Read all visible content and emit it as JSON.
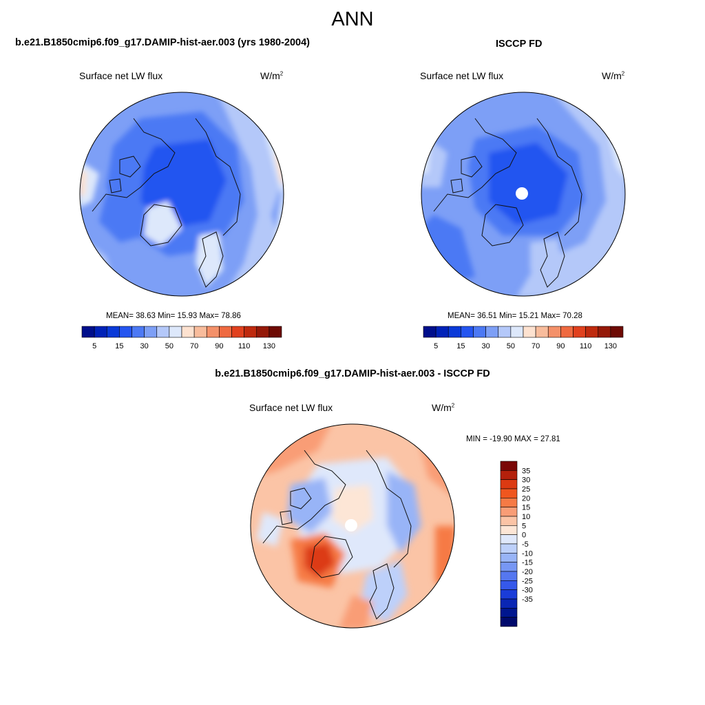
{
  "main_title": "ANN",
  "panels": {
    "model": {
      "title": "b.e21.B1850cmip6.f09_g17.DAMIP-hist-aer.003 (yrs 1980-2004)",
      "field": "Surface net LW flux",
      "units_base": "W/m",
      "units_exp": "2",
      "stats": "MEAN=  38.63  Min=  15.93  Max=  78.86"
    },
    "obs": {
      "title": "ISCCP FD",
      "field": "Surface net LW flux",
      "units_base": "W/m",
      "units_exp": "2",
      "stats": "MEAN=  36.51  Min=  15.21  Max=  70.28"
    },
    "diff": {
      "title": "b.e21.B1850cmip6.f09_g17.DAMIP-hist-aer.003 - ISCCP FD",
      "field": "Surface net LW flux",
      "units_base": "W/m",
      "units_exp": "2",
      "stats": "MIN = -19.90 MAX =  27.81"
    }
  },
  "colorbar_h": {
    "colors": [
      "#000f8c",
      "#0022b8",
      "#0a3ad8",
      "#2455f0",
      "#4c79f4",
      "#7d9ff6",
      "#b4c8f9",
      "#dde8fb",
      "#fde2d0",
      "#f8bc9c",
      "#f4916a",
      "#ef6a40",
      "#e1411e",
      "#bf2a0e",
      "#951908",
      "#6e0a04"
    ],
    "ticks": [
      "5",
      "15",
      "30",
      "50",
      "70",
      "90",
      "110",
      "130"
    ]
  },
  "colorbar_v": {
    "colors": [
      "#7a0707",
      "#b4200b",
      "#dc3a12",
      "#f0561f",
      "#f67a45",
      "#f99d76",
      "#fbc4a6",
      "#fde6d6",
      "#dfe8fb",
      "#bdd0fa",
      "#98b4f7",
      "#7797f4",
      "#5577f0",
      "#3558ea",
      "#1a3cd8",
      "#0a26b4",
      "#00168f",
      "#000a6c"
    ],
    "ticks": [
      "35",
      "30",
      "25",
      "20",
      "15",
      "10",
      "5",
      "0",
      "-5",
      "-10",
      "-15",
      "-20",
      "-25",
      "-30",
      "-35"
    ]
  }
}
